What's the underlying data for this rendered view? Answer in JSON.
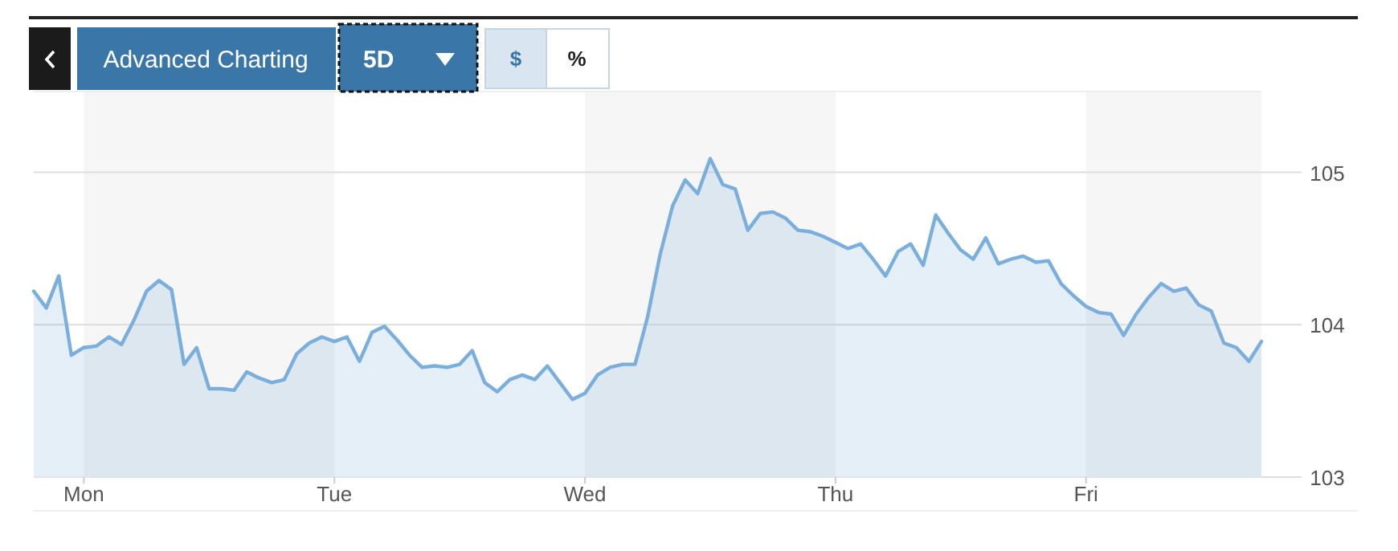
{
  "chart_data": {
    "type": "area",
    "categories": [
      null,
      null,
      null,
      null,
      "Mon",
      null,
      null,
      null,
      null,
      null,
      null,
      null,
      null,
      null,
      null,
      null,
      null,
      null,
      null,
      null,
      null,
      null,
      null,
      null,
      "Tue",
      null,
      null,
      null,
      null,
      null,
      null,
      null,
      null,
      null,
      null,
      null,
      null,
      null,
      null,
      null,
      null,
      null,
      null,
      null,
      "Wed",
      null,
      null,
      null,
      null,
      null,
      null,
      null,
      null,
      null,
      null,
      null,
      null,
      null,
      null,
      null,
      null,
      null,
      null,
      null,
      "Thu",
      null,
      null,
      null,
      null,
      null,
      null,
      null,
      null,
      null,
      null,
      null,
      null,
      null,
      null,
      null,
      null,
      null,
      null,
      null,
      "Fri",
      null,
      null,
      null,
      null,
      null,
      null,
      null,
      null,
      null,
      null,
      null,
      null,
      null,
      null
    ],
    "series": [
      {
        "color": "#7aaedc",
        "values": [
          104.22,
          104.11,
          104.32,
          103.8,
          103.85,
          103.86,
          103.92,
          103.87,
          104.03,
          104.22,
          104.29,
          104.23,
          103.74,
          103.85,
          103.58,
          103.58,
          103.57,
          103.69,
          103.65,
          103.62,
          103.64,
          103.81,
          103.88,
          103.92,
          103.89,
          103.92,
          103.76,
          103.95,
          103.99,
          103.9,
          103.8,
          103.72,
          103.73,
          103.72,
          103.74,
          103.83,
          103.62,
          103.56,
          103.64,
          103.67,
          103.64,
          103.73,
          103.62,
          103.51,
          103.55,
          103.67,
          103.72,
          103.74,
          103.74,
          104.05,
          104.46,
          104.78,
          104.95,
          104.86,
          105.09,
          104.92,
          104.89,
          104.62,
          104.73,
          104.74,
          104.7,
          104.62,
          104.61,
          104.58,
          104.54,
          104.5,
          104.53,
          104.43,
          104.32,
          104.48,
          104.53,
          104.39,
          104.72,
          104.6,
          104.49,
          104.43,
          104.57,
          104.4,
          104.43,
          104.45,
          104.41,
          104.42,
          104.27,
          104.19,
          104.12,
          104.08,
          104.07,
          103.93,
          104.07,
          104.18,
          104.27,
          104.22,
          104.24,
          104.13,
          104.09,
          103.88,
          103.85,
          103.76,
          103.89
        ]
      }
    ],
    "ylim": [
      103,
      105.53
    ],
    "yticks": [
      103,
      104,
      105
    ],
    "grid": "y",
    "annotations": [
      "Advanced Charting",
      "5D",
      "$",
      "%"
    ]
  }
}
